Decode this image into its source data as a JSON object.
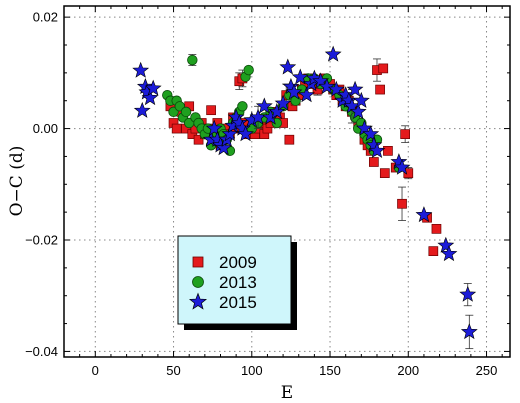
{
  "chart_data": {
    "type": "scatter",
    "xlabel": "E",
    "ylabel": "O−C (d)",
    "xlim": [
      -20,
      265
    ],
    "ylim": [
      -0.041,
      0.022
    ],
    "x_ticks": [
      0,
      50,
      100,
      150,
      200,
      250
    ],
    "y_ticks": [
      0.02,
      0.0,
      -0.02,
      -0.04
    ],
    "y_tick_labels": [
      "0.02",
      "0.00",
      "−0.02",
      "−0.04"
    ],
    "grid": true,
    "legend_position": "lower-left",
    "series": [
      {
        "name": "2009",
        "marker": "square",
        "color": "#e41a1c",
        "points": [
          [
            48,
            0.004,
            0
          ],
          [
            50,
            0.001,
            0
          ],
          [
            52,
            0.0,
            0
          ],
          [
            55,
            0.003,
            0
          ],
          [
            58,
            0.0,
            0
          ],
          [
            60,
            0.004,
            0
          ],
          [
            62,
            -0.001,
            0
          ],
          [
            64,
            0.0,
            0
          ],
          [
            66,
            -0.002,
            0
          ],
          [
            68,
            0.001,
            0
          ],
          [
            70,
            -0.001,
            0
          ],
          [
            72,
            0.0,
            0
          ],
          [
            74,
            0.0033,
            0
          ],
          [
            76,
            -0.002,
            0
          ],
          [
            78,
            0.001,
            0
          ],
          [
            80,
            -0.003,
            0
          ],
          [
            82,
            -0.002,
            0
          ],
          [
            84,
            0.0,
            0
          ],
          [
            86,
            -0.001,
            0
          ],
          [
            88,
            0.002,
            0
          ],
          [
            90,
            0.0,
            0
          ],
          [
            92,
            0.0085,
            0.0015
          ],
          [
            94,
            0.009,
            0.0015
          ],
          [
            96,
            0.001,
            0
          ],
          [
            98,
            -0.001,
            0
          ],
          [
            100,
            0.0,
            0
          ],
          [
            102,
            -0.001,
            0
          ],
          [
            104,
            0.0,
            0
          ],
          [
            106,
            0.001,
            0
          ],
          [
            108,
            -0.001,
            0
          ],
          [
            110,
            0.0,
            0
          ],
          [
            112,
            0.001,
            0
          ],
          [
            114,
            0.002,
            0
          ],
          [
            116,
            0.003,
            0
          ],
          [
            118,
            0.002,
            0
          ],
          [
            120,
            0.001,
            0
          ],
          [
            122,
            0.006,
            0.002
          ],
          [
            124,
            -0.002,
            0
          ],
          [
            126,
            0.004,
            0
          ],
          [
            128,
            0.005,
            0
          ],
          [
            130,
            0.006,
            0
          ],
          [
            132,
            0.007,
            0
          ],
          [
            134,
            0.008,
            0
          ],
          [
            136,
            0.009,
            0
          ],
          [
            138,
            0.009,
            0
          ],
          [
            140,
            0.008,
            0
          ],
          [
            142,
            0.007,
            0.001
          ],
          [
            144,
            0.008,
            0
          ],
          [
            146,
            0.009,
            0
          ],
          [
            148,
            0.008,
            0
          ],
          [
            150,
            0.008,
            0
          ],
          [
            152,
            0.007,
            0
          ],
          [
            154,
            0.006,
            0
          ],
          [
            156,
            0.007,
            0
          ],
          [
            158,
            0.005,
            0
          ],
          [
            160,
            0.004,
            0
          ],
          [
            162,
            0.005,
            0
          ],
          [
            164,
            0.003,
            0
          ],
          [
            166,
            0.003,
            0
          ],
          [
            168,
            0.001,
            0
          ],
          [
            170,
            0.0,
            0
          ],
          [
            172,
            -0.002,
            0
          ],
          [
            174,
            -0.003,
            0
          ],
          [
            176,
            -0.004,
            0
          ],
          [
            178,
            -0.006,
            0
          ],
          [
            180,
            0.0105,
            0.002
          ],
          [
            182,
            0.007,
            0
          ],
          [
            184,
            0.0108,
            0
          ],
          [
            185,
            -0.008,
            0
          ],
          [
            187,
            -0.004,
            0
          ],
          [
            192,
            -0.007,
            0
          ],
          [
            196,
            -0.0135,
            0.003
          ],
          [
            198,
            -0.001,
            0.0015
          ],
          [
            200,
            -0.008,
            0.001
          ],
          [
            212,
            -0.016,
            0
          ],
          [
            216,
            -0.022,
            0
          ],
          [
            218,
            -0.018,
            0
          ]
        ]
      },
      {
        "name": "2013",
        "marker": "circle",
        "color": "#1fa01f",
        "points": [
          [
            46,
            0.006,
            0
          ],
          [
            48,
            0.005,
            0
          ],
          [
            50,
            0.003,
            0
          ],
          [
            52,
            0.005,
            0
          ],
          [
            54,
            0.004,
            0
          ],
          [
            56,
            0.002,
            0
          ],
          [
            58,
            0.003,
            0
          ],
          [
            60,
            0.001,
            0
          ],
          [
            62,
            0.0123,
            0.001
          ],
          [
            64,
            0.002,
            0
          ],
          [
            66,
            0.001,
            0
          ],
          [
            68,
            0.0,
            0
          ],
          [
            70,
            -0.001,
            0
          ],
          [
            72,
            0.0,
            0
          ],
          [
            74,
            -0.003,
            0
          ],
          [
            76,
            -0.002,
            0
          ],
          [
            78,
            -0.001,
            0
          ],
          [
            80,
            0.0,
            0
          ],
          [
            82,
            -0.001,
            0
          ],
          [
            84,
            -0.002,
            0
          ],
          [
            86,
            -0.004,
            0
          ],
          [
            88,
            0.001,
            0
          ],
          [
            90,
            0.002,
            0
          ],
          [
            92,
            0.003,
            0
          ],
          [
            94,
            0.004,
            0
          ],
          [
            96,
            0.0093,
            0
          ],
          [
            98,
            0.0105,
            0
          ],
          [
            100,
            0.0,
            0
          ],
          [
            104,
            0.001,
            0
          ],
          [
            108,
            0.002,
            0
          ],
          [
            112,
            0.003,
            0
          ],
          [
            116,
            0.001,
            0
          ],
          [
            120,
            0.004,
            0
          ],
          [
            124,
            0.006,
            0
          ],
          [
            128,
            0.005,
            0
          ],
          [
            132,
            0.007,
            0
          ],
          [
            136,
            0.009,
            0
          ],
          [
            140,
            0.009,
            0
          ],
          [
            144,
            0.008,
            0
          ],
          [
            148,
            0.009,
            0
          ],
          [
            152,
            0.007,
            0
          ],
          [
            156,
            0.006,
            0
          ],
          [
            160,
            0.004,
            0
          ],
          [
            164,
            0.003,
            0
          ],
          [
            166,
            0.002,
            0
          ],
          [
            168,
            0.0,
            0
          ],
          [
            170,
            0.001,
            0
          ],
          [
            172,
            -0.001,
            0
          ],
          [
            174,
            -0.002,
            0
          ],
          [
            176,
            -0.003,
            0
          ],
          [
            178,
            -0.004,
            0
          ],
          [
            180,
            -0.002,
            0
          ],
          [
            194,
            -0.007,
            0
          ]
        ]
      },
      {
        "name": "2015",
        "marker": "star",
        "color": "#1c1cd8",
        "points": [
          [
            29,
            0.0104,
            0
          ],
          [
            30,
            0.0032,
            0
          ],
          [
            32,
            0.0075,
            0
          ],
          [
            33,
            0.0065,
            0
          ],
          [
            35,
            0.0055,
            0
          ],
          [
            37,
            0.0072,
            0
          ],
          [
            74,
            -0.002,
            0
          ],
          [
            76,
            0.0,
            0
          ],
          [
            78,
            -0.002,
            0
          ],
          [
            80,
            -0.003,
            0
          ],
          [
            82,
            -0.0035,
            0
          ],
          [
            84,
            -0.002,
            0
          ],
          [
            86,
            -0.001,
            0
          ],
          [
            88,
            0.0005,
            0
          ],
          [
            90,
            0.002,
            0
          ],
          [
            92,
            0.001,
            0
          ],
          [
            94,
            0.0,
            0
          ],
          [
            96,
            -0.001,
            0
          ],
          [
            100,
            0.0015,
            0
          ],
          [
            104,
            0.002,
            0.002
          ],
          [
            108,
            0.004,
            0
          ],
          [
            112,
            0.002,
            0
          ],
          [
            116,
            0.003,
            0
          ],
          [
            120,
            0.0045,
            0
          ],
          [
            123,
            0.011,
            0
          ],
          [
            125,
            0.0075,
            0
          ],
          [
            127,
            0.0065,
            0
          ],
          [
            131,
            0.0092,
            0
          ],
          [
            135,
            0.006,
            0
          ],
          [
            138,
            0.008,
            0
          ],
          [
            140,
            0.009,
            0
          ],
          [
            144,
            0.0085,
            0
          ],
          [
            148,
            0.0075,
            0
          ],
          [
            152,
            0.0133,
            0
          ],
          [
            154,
            0.007,
            0
          ],
          [
            158,
            0.005,
            0
          ],
          [
            160,
            0.006,
            0
          ],
          [
            162,
            0.005,
            0
          ],
          [
            164,
            0.004,
            0.003
          ],
          [
            166,
            0.007,
            0
          ],
          [
            168,
            0.003,
            0
          ],
          [
            170,
            0.005,
            0
          ],
          [
            172,
            0.0,
            0
          ],
          [
            176,
            -0.001,
            0
          ],
          [
            178,
            -0.003,
            0
          ],
          [
            180,
            -0.004,
            0
          ],
          [
            194,
            -0.006,
            0
          ],
          [
            196,
            -0.007,
            0
          ],
          [
            210,
            -0.0155,
            0
          ],
          [
            224,
            -0.021,
            0
          ],
          [
            226,
            -0.0225,
            0
          ],
          [
            238,
            -0.0298,
            0.002
          ],
          [
            239,
            -0.0365,
            0.003
          ]
        ]
      }
    ]
  }
}
